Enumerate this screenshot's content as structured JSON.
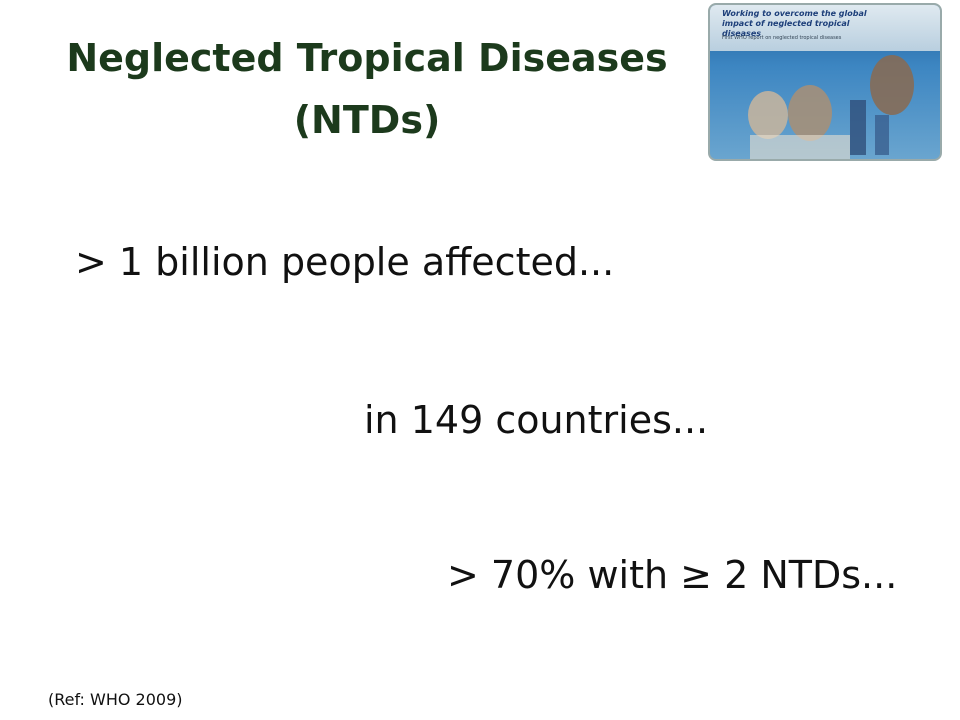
{
  "slide": {
    "title": {
      "line1": "Neglected Tropical Diseases",
      "line2": "(NTDs)"
    },
    "points": [
      "> 1 billion people affected...",
      "in 149 countries...",
      "> 70% with ≥ 2 NTDs..."
    ],
    "reference": "(Ref:  WHO 2009)",
    "cover_image": {
      "heading": "Working to overcome the global impact of neglected tropical diseases",
      "subheading": "First WHO report on neglected tropical diseases"
    }
  }
}
